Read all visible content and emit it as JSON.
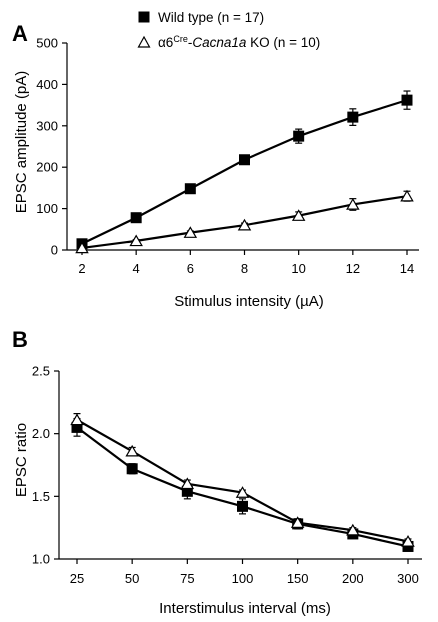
{
  "chart_data": [
    {
      "panel": "A",
      "type": "line",
      "xlabel": "Stimulus intensity (µA)",
      "ylabel": "EPSC amplitude (pA)",
      "x": [
        2,
        4,
        6,
        8,
        10,
        12,
        14
      ],
      "xlim": [
        2,
        14
      ],
      "ylim": [
        0,
        500
      ],
      "yticks": [
        0,
        100,
        200,
        300,
        400,
        500
      ],
      "legend_position": "top-left",
      "series": [
        {
          "name": "Wild type (n = 17)",
          "marker": "filled-square",
          "values": [
            15,
            78,
            148,
            218,
            275,
            321,
            362
          ],
          "errors": [
            4,
            6,
            9,
            11,
            17,
            20,
            22
          ]
        },
        {
          "name_parts": [
            "α6",
            "Cre",
            "-",
            "Cacna1a",
            " KO (n = 10)"
          ],
          "marker": "open-triangle",
          "values": [
            5,
            22,
            42,
            60,
            83,
            110,
            130
          ],
          "errors": [
            2,
            3,
            4,
            5,
            9,
            14,
            12
          ]
        }
      ]
    },
    {
      "panel": "B",
      "type": "line",
      "xlabel": "Interstimulus interval (ms)",
      "ylabel": "EPSC ratio",
      "categories": [
        "25",
        "50",
        "75",
        "100",
        "150",
        "200",
        "300"
      ],
      "ylim": [
        1.0,
        2.5
      ],
      "yticks": [
        "1.0",
        "1.5",
        "2.0",
        "2.5"
      ],
      "series": [
        {
          "marker": "filled-square",
          "values": [
            2.05,
            1.72,
            1.54,
            1.42,
            1.28,
            1.2,
            1.1
          ],
          "errors": [
            0.07,
            0.04,
            0.06,
            0.06,
            0.04,
            0.03,
            0.02
          ]
        },
        {
          "marker": "open-triangle",
          "values": [
            2.11,
            1.86,
            1.6,
            1.53,
            1.29,
            1.23,
            1.14
          ],
          "errors": [
            0.05,
            0.03,
            0.03,
            0.02,
            0.03,
            0.02,
            0.02
          ]
        }
      ]
    }
  ]
}
